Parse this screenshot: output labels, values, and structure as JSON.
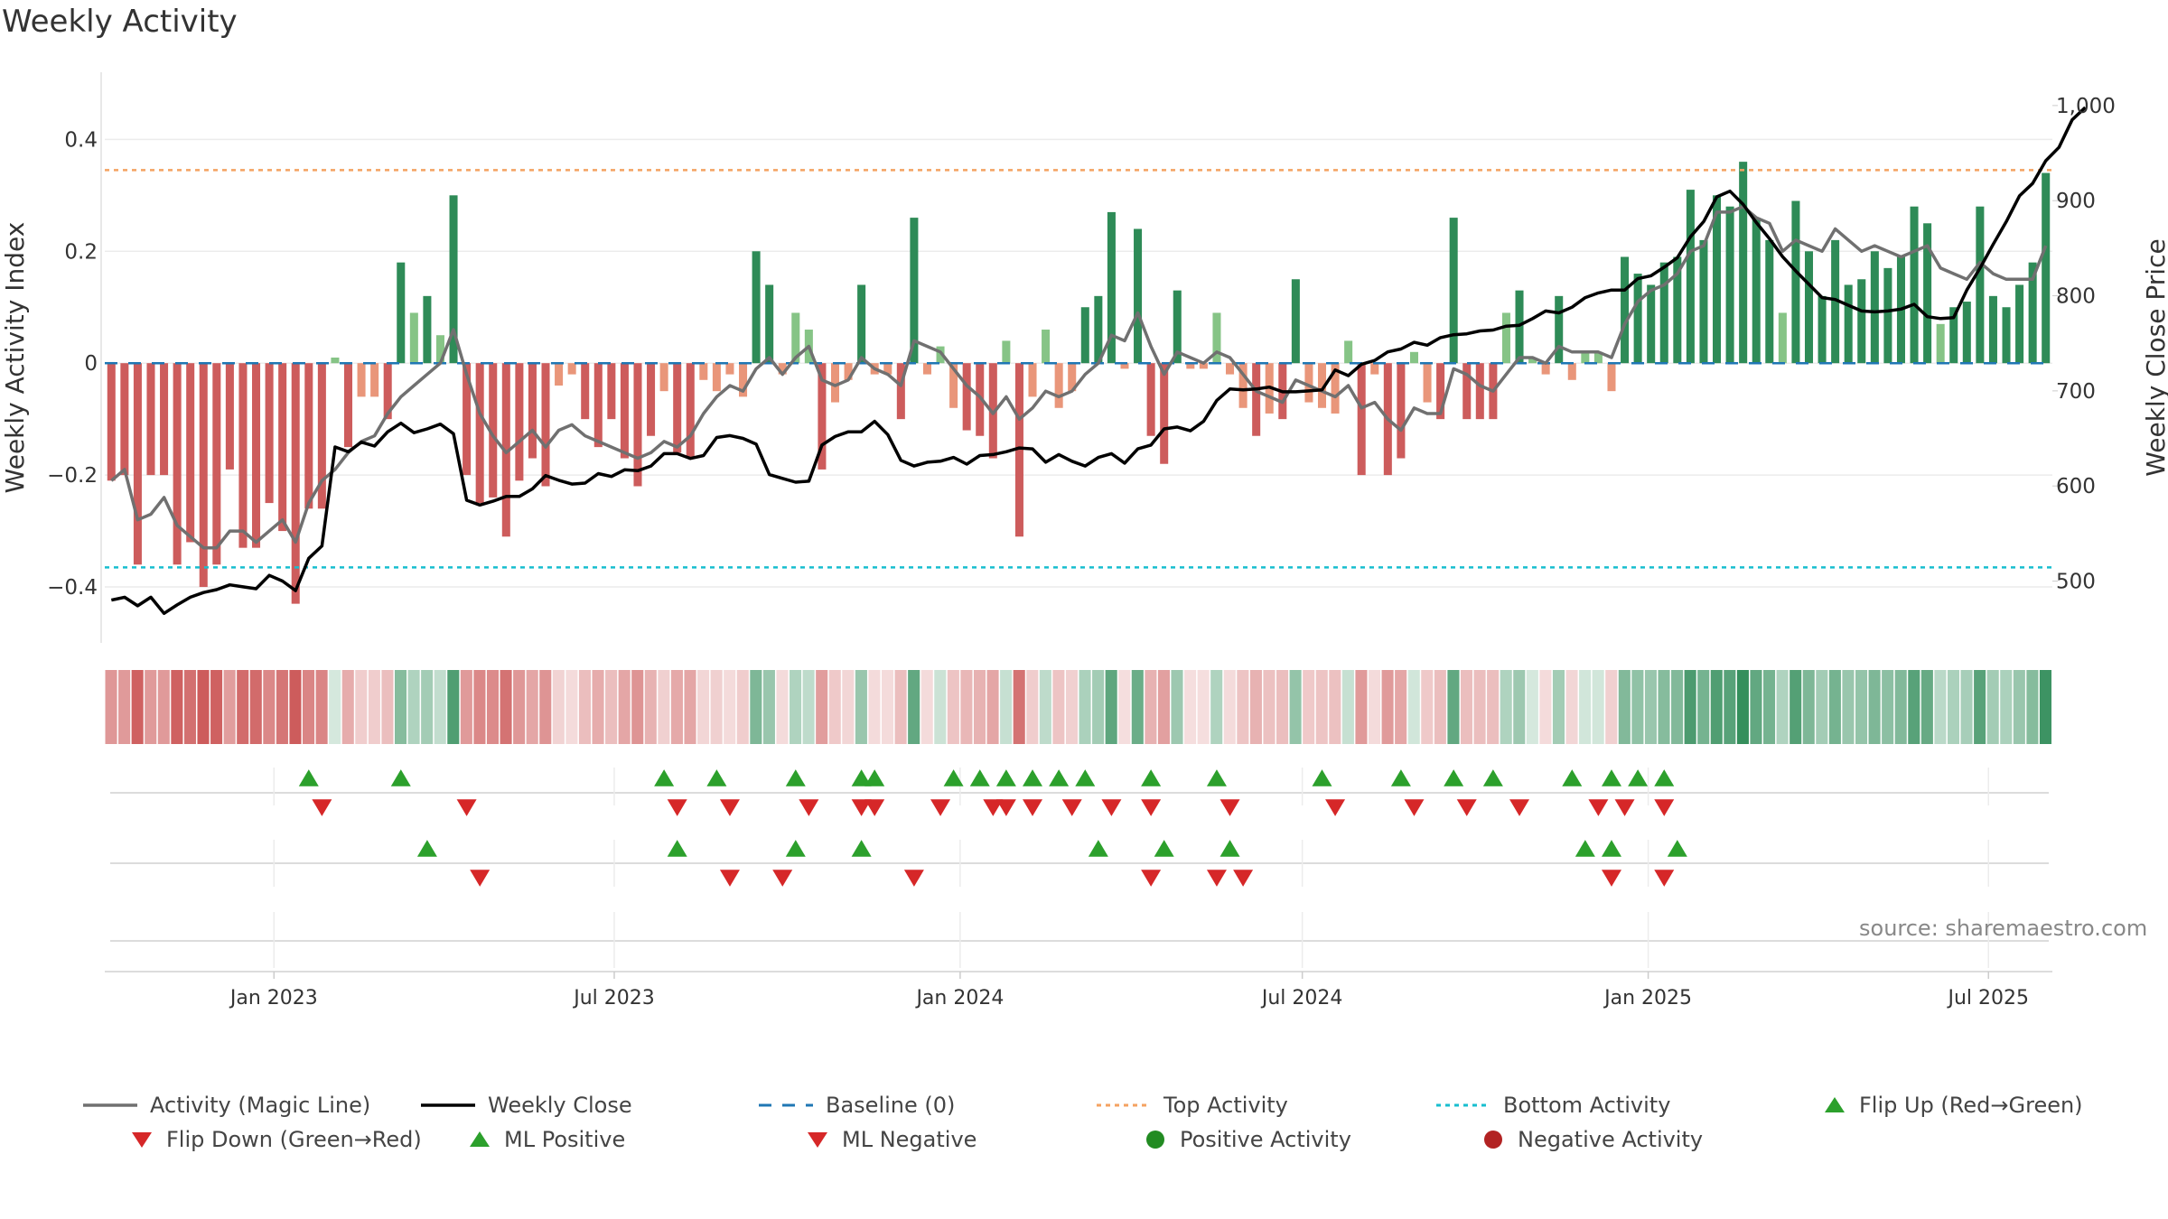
{
  "title": "Weekly Activity",
  "source": "source: sharemaestro.com",
  "colors": {
    "pos_strong": "#2e8b57",
    "pos_light": "#86c486",
    "neg_strong": "#cd5c5c",
    "neg_light": "#e9967a",
    "magic_line": "#707070",
    "close_line": "#000000",
    "baseline": "#1f77b4",
    "top_line": "#f4a261",
    "bottom_line": "#17becf",
    "up_marker": "#2ca02c",
    "down_marker": "#d62728"
  },
  "chart_data": {
    "type": "bar",
    "start_date": "2022-10-03",
    "frequency": "weekly",
    "y_left": {
      "label": "Weekly Activity Index",
      "ticks": [
        "0.4",
        "0.2",
        "0",
        "−0.2",
        "−0.4"
      ],
      "lim": [
        -0.5,
        0.52
      ]
    },
    "y_right": {
      "label": "Weekly Close Price",
      "ticks": [
        "1,000",
        "900",
        "800",
        "700",
        "600",
        "500"
      ],
      "lim": [
        435,
        1035
      ]
    },
    "x_ticks": [
      "Jan 2023",
      "Jul 2023",
      "Jan 2024",
      "Jul 2024",
      "Jan 2025",
      "Jul 2025"
    ],
    "top_activity": 0.345,
    "bottom_activity": -0.365,
    "activity": [
      -0.21,
      -0.2,
      -0.36,
      -0.2,
      -0.2,
      -0.36,
      -0.32,
      -0.4,
      -0.36,
      -0.19,
      -0.33,
      -0.33,
      -0.25,
      -0.3,
      -0.43,
      -0.26,
      -0.26,
      0.01,
      -0.15,
      -0.06,
      -0.06,
      -0.1,
      0.18,
      0.09,
      0.12,
      0.05,
      0.3,
      -0.2,
      -0.25,
      -0.24,
      -0.31,
      -0.21,
      -0.17,
      -0.22,
      -0.04,
      -0.02,
      -0.1,
      -0.15,
      -0.1,
      -0.17,
      -0.22,
      -0.13,
      -0.05,
      -0.16,
      -0.17,
      -0.03,
      -0.05,
      -0.02,
      -0.06,
      0.2,
      0.14,
      -0.02,
      0.09,
      0.06,
      -0.19,
      -0.07,
      -0.03,
      0.14,
      -0.02,
      -0.02,
      -0.1,
      0.26,
      -0.02,
      0.03,
      -0.08,
      -0.12,
      -0.13,
      -0.17,
      0.04,
      -0.31,
      -0.06,
      0.06,
      -0.08,
      -0.05,
      0.1,
      0.12,
      0.27,
      -0.01,
      0.24,
      -0.13,
      -0.18,
      0.13,
      -0.01,
      -0.01,
      0.09,
      -0.02,
      -0.08,
      -0.13,
      -0.09,
      -0.1,
      0.15,
      -0.07,
      -0.08,
      -0.09,
      0.04,
      -0.2,
      -0.02,
      -0.2,
      -0.17,
      0.02,
      -0.07,
      -0.1,
      0.26,
      -0.1,
      -0.1,
      -0.1,
      0.09,
      0.13,
      0.01,
      -0.02,
      0.12,
      -0.03,
      0.02,
      0.02,
      -0.05,
      0.19,
      0.16,
      0.14,
      0.18,
      0.19,
      0.31,
      0.22,
      0.3,
      0.28,
      0.36,
      0.26,
      0.22,
      0.09,
      0.29,
      0.2,
      0.12,
      0.22,
      0.14,
      0.15,
      0.2,
      0.17,
      0.19,
      0.28,
      0.25,
      0.07,
      0.1,
      0.11,
      0.28,
      0.12,
      0.1,
      0.14,
      0.18,
      0.34
    ],
    "magic_line": [
      -0.21,
      -0.19,
      -0.28,
      -0.27,
      -0.24,
      -0.29,
      -0.31,
      -0.33,
      -0.33,
      -0.3,
      -0.3,
      -0.32,
      -0.3,
      -0.28,
      -0.32,
      -0.25,
      -0.21,
      -0.19,
      -0.16,
      -0.14,
      -0.13,
      -0.09,
      -0.06,
      -0.04,
      -0.02,
      0.0,
      0.06,
      -0.02,
      -0.09,
      -0.13,
      -0.16,
      -0.14,
      -0.12,
      -0.15,
      -0.12,
      -0.11,
      -0.13,
      -0.14,
      -0.15,
      -0.16,
      -0.17,
      -0.16,
      -0.14,
      -0.15,
      -0.13,
      -0.09,
      -0.06,
      -0.04,
      -0.05,
      -0.01,
      0.01,
      -0.02,
      0.01,
      0.03,
      -0.03,
      -0.04,
      -0.03,
      0.01,
      -0.01,
      -0.02,
      -0.04,
      0.04,
      0.03,
      0.02,
      -0.01,
      -0.04,
      -0.06,
      -0.09,
      -0.06,
      -0.1,
      -0.08,
      -0.05,
      -0.06,
      -0.05,
      -0.02,
      0.0,
      0.05,
      0.04,
      0.09,
      0.03,
      -0.02,
      0.02,
      0.01,
      0.0,
      0.02,
      0.01,
      -0.02,
      -0.05,
      -0.06,
      -0.07,
      -0.03,
      -0.04,
      -0.05,
      -0.06,
      -0.04,
      -0.08,
      -0.07,
      -0.1,
      -0.12,
      -0.08,
      -0.09,
      -0.09,
      -0.01,
      -0.02,
      -0.04,
      -0.05,
      -0.02,
      0.01,
      0.01,
      0.0,
      0.03,
      0.02,
      0.02,
      0.02,
      0.01,
      0.07,
      0.11,
      0.13,
      0.14,
      0.16,
      0.2,
      0.21,
      0.27,
      0.27,
      0.28,
      0.26,
      0.25,
      0.2,
      0.22,
      0.21,
      0.2,
      0.24,
      0.22,
      0.2,
      0.21,
      0.2,
      0.19,
      0.2,
      0.21,
      0.17,
      0.16,
      0.15,
      0.18,
      0.16,
      0.15,
      0.15,
      0.15,
      0.21
    ],
    "weekly_close": [
      480,
      483,
      474,
      483,
      466,
      475,
      483,
      488,
      491,
      496,
      494,
      492,
      506,
      500,
      490,
      524,
      537,
      641,
      636,
      646,
      642,
      657,
      666,
      656,
      660,
      665,
      655,
      585,
      580,
      584,
      589,
      589,
      597,
      611,
      606,
      602,
      603,
      613,
      610,
      617,
      616,
      621,
      634,
      634,
      629,
      632,
      651,
      653,
      650,
      644,
      612,
      608,
      604,
      605,
      643,
      652,
      657,
      657,
      668,
      654,
      627,
      621,
      625,
      626,
      630,
      623,
      632,
      633,
      636,
      640,
      639,
      625,
      633,
      626,
      621,
      630,
      634,
      624,
      639,
      643,
      660,
      662,
      658,
      668,
      690,
      702,
      701,
      702,
      704,
      699,
      699,
      700,
      701,
      722,
      716,
      728,
      732,
      741,
      744,
      751,
      748,
      756,
      759,
      760,
      763,
      764,
      768,
      769,
      776,
      784,
      782,
      788,
      798,
      803,
      806,
      806,
      818,
      821,
      830,
      840,
      862,
      878,
      904,
      910,
      896,
      877,
      860,
      841,
      826,
      812,
      798,
      796,
      790,
      784,
      783,
      784,
      786,
      791,
      778,
      776,
      777,
      806,
      829,
      854,
      878,
      905,
      918,
      942,
      956,
      985,
      998
    ]
  },
  "signals": {
    "flip_up": [
      "2023-01-16",
      "2023-03-06",
      "2023-07-24",
      "2023-08-21",
      "2023-10-02",
      "2023-11-06",
      "2023-11-13",
      "2023-12-25",
      "2024-01-08",
      "2024-01-22",
      "2024-02-05",
      "2024-02-19",
      "2024-03-04",
      "2024-04-08",
      "2024-05-13",
      "2024-07-08",
      "2024-08-19",
      "2024-09-16",
      "2024-10-07",
      "2024-11-18",
      "2024-12-09",
      "2024-12-23",
      "2025-01-06"
    ],
    "flip_down": [
      "2023-01-23",
      "2023-04-10",
      "2023-07-31",
      "2023-08-28",
      "2023-10-09",
      "2023-11-06",
      "2023-11-13",
      "2023-12-18",
      "2024-01-15",
      "2024-01-22",
      "2024-02-05",
      "2024-02-26",
      "2024-03-18",
      "2024-04-08",
      "2024-05-20",
      "2024-07-15",
      "2024-08-26",
      "2024-09-23",
      "2024-10-21",
      "2024-12-02",
      "2024-12-16",
      "2025-01-06"
    ],
    "ml_positive": [
      "2023-03-20",
      "2023-07-31",
      "2023-10-02",
      "2023-11-06",
      "2024-03-11",
      "2024-04-15",
      "2024-05-20",
      "2024-11-25",
      "2024-12-09",
      "2025-01-13"
    ],
    "ml_negative": [
      "2023-04-17",
      "2023-08-28",
      "2023-09-25",
      "2023-12-04",
      "2024-04-08",
      "2024-05-13",
      "2024-05-27",
      "2024-12-09",
      "2025-01-06"
    ]
  },
  "legend": [
    {
      "key": "magic",
      "label": "Activity (Magic Line)"
    },
    {
      "key": "close",
      "label": "Weekly Close"
    },
    {
      "key": "baseline",
      "label": "Baseline (0)"
    },
    {
      "key": "top",
      "label": "Top Activity"
    },
    {
      "key": "bottom",
      "label": "Bottom Activity"
    },
    {
      "key": "flipup",
      "label": "Flip Up (Red→Green)"
    },
    {
      "key": "flipdown",
      "label": "Flip Down (Green→Red)"
    },
    {
      "key": "mlpos",
      "label": "ML Positive"
    },
    {
      "key": "mlneg",
      "label": "ML Negative"
    },
    {
      "key": "posact",
      "label": "Positive Activity"
    },
    {
      "key": "negact",
      "label": "Negative Activity"
    }
  ]
}
